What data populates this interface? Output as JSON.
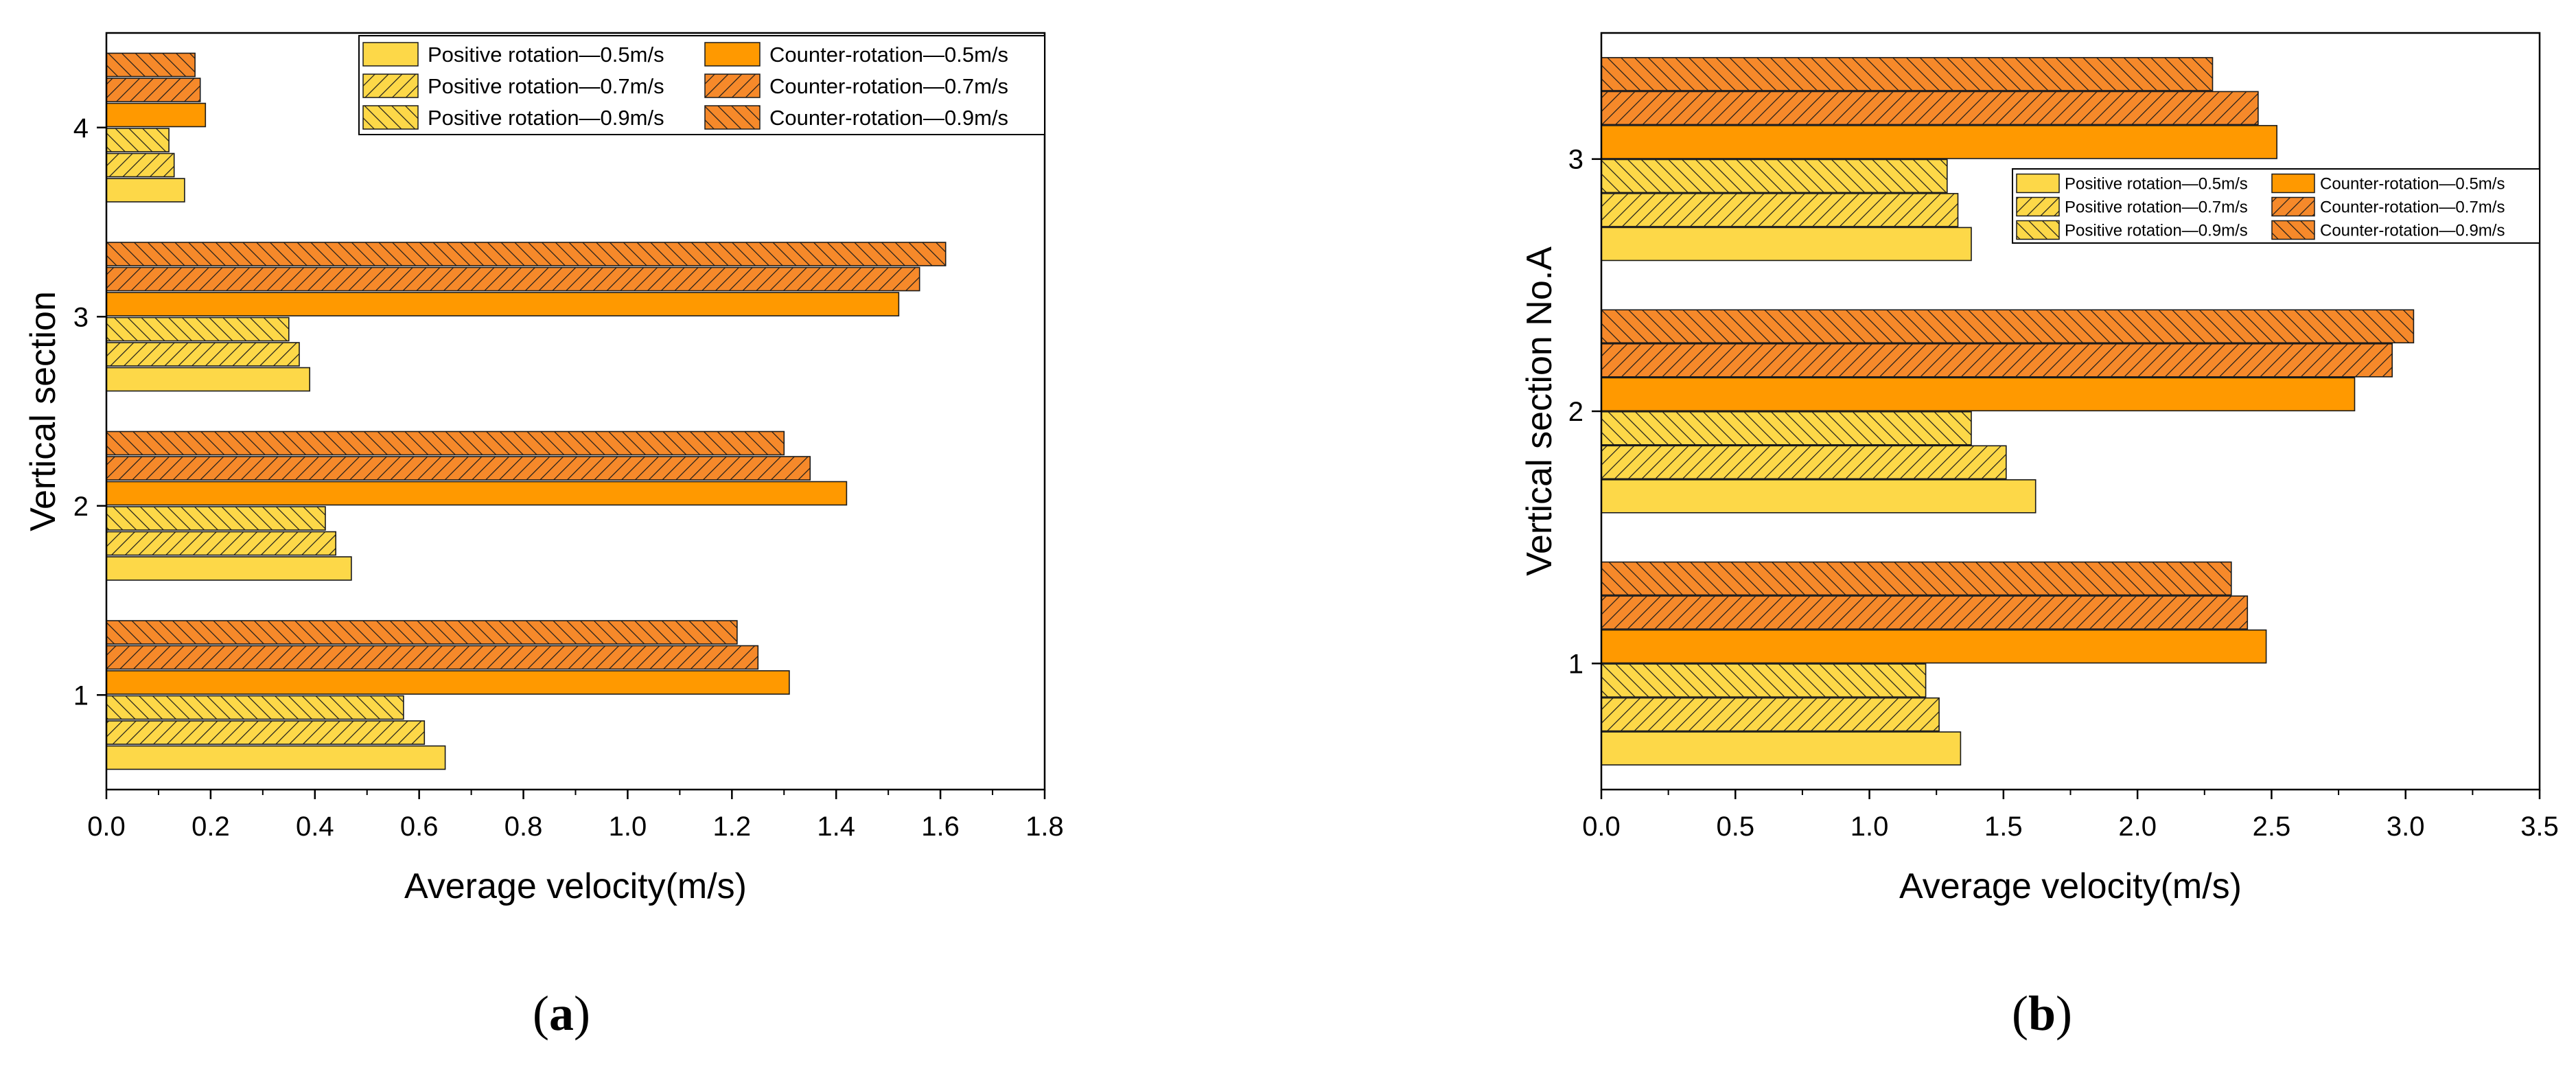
{
  "figure": {
    "panel_labels": [
      {
        "open": "(",
        "letter": "a",
        "close": ")"
      },
      {
        "open": "(",
        "letter": "b",
        "close": ")"
      }
    ]
  },
  "colors": {
    "pos_fill": "#FDD848",
    "counter_fill": "#FF9900",
    "counter_hatch_fill": "#F6892A",
    "edge": "#1a1a1a"
  },
  "chart_data": [
    {
      "type": "bar",
      "orientation": "horizontal",
      "panel": "a",
      "title": "",
      "xlabel": "Average velocity(m/s)",
      "ylabel": "Vertical section",
      "xlim": [
        0.0,
        1.8
      ],
      "xticks": [
        "0.0",
        "0.2",
        "0.4",
        "0.6",
        "0.8",
        "1.0",
        "1.2",
        "1.4",
        "1.6",
        "1.8"
      ],
      "categories": [
        "1",
        "2",
        "3",
        "4"
      ],
      "legend_position": "top-right",
      "series": [
        {
          "name": "Positive rotation—0.5m/s",
          "values": [
            0.65,
            0.47,
            0.39,
            0.15
          ]
        },
        {
          "name": "Positive rotation—0.7m/s",
          "values": [
            0.61,
            0.44,
            0.37,
            0.13
          ]
        },
        {
          "name": "Positive rotation—0.9m/s",
          "values": [
            0.57,
            0.42,
            0.35,
            0.12
          ]
        },
        {
          "name": "Counter-rotation—0.5m/s",
          "values": [
            1.31,
            1.42,
            1.52,
            0.19
          ]
        },
        {
          "name": "Counter-rotation—0.7m/s",
          "values": [
            1.25,
            1.35,
            1.56,
            0.18
          ]
        },
        {
          "name": "Counter-rotation—0.9m/s",
          "values": [
            1.21,
            1.3,
            1.61,
            0.17
          ]
        }
      ]
    },
    {
      "type": "bar",
      "orientation": "horizontal",
      "panel": "b",
      "title": "",
      "xlabel": "Average velocity(m/s)",
      "ylabel": "Vertical section No.A",
      "xlim": [
        0.0,
        3.5
      ],
      "xticks": [
        "0.0",
        "0.5",
        "1.0",
        "1.5",
        "2.0",
        "2.5",
        "3.0",
        "3.5"
      ],
      "categories": [
        "1",
        "2",
        "3"
      ],
      "legend_position": "center-right",
      "series": [
        {
          "name": "Positive rotation—0.5m/s",
          "values": [
            1.34,
            1.62,
            1.38
          ]
        },
        {
          "name": "Positive rotation—0.7m/s",
          "values": [
            1.26,
            1.51,
            1.33
          ]
        },
        {
          "name": "Positive rotation—0.9m/s",
          "values": [
            1.21,
            1.38,
            1.29
          ]
        },
        {
          "name": "Counter-rotation—0.5m/s",
          "values": [
            2.48,
            2.81,
            2.52
          ]
        },
        {
          "name": "Counter-rotation—0.7m/s",
          "values": [
            2.41,
            2.95,
            2.45
          ]
        },
        {
          "name": "Counter-rotation—0.9m/s",
          "values": [
            2.35,
            3.03,
            2.28
          ]
        }
      ]
    }
  ]
}
